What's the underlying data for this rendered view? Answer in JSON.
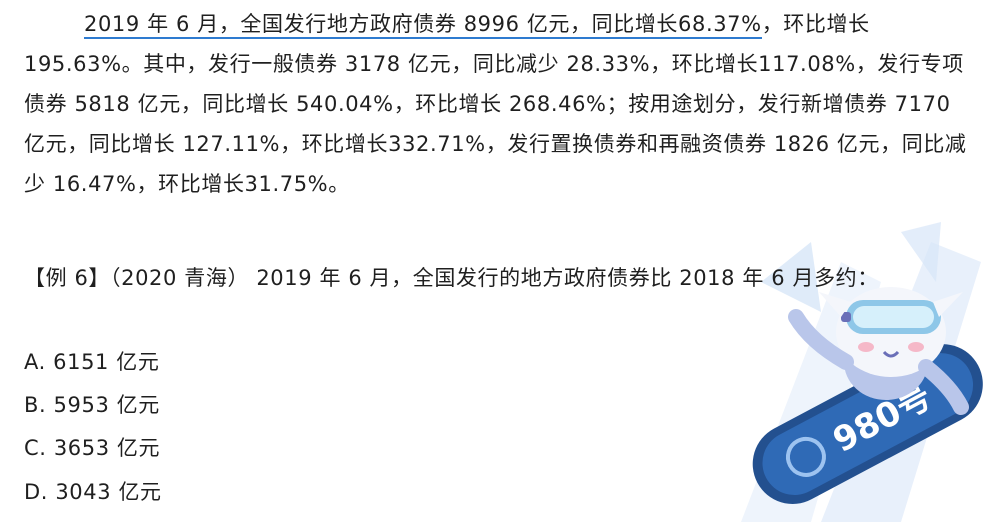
{
  "passage": {
    "first_sentence": "2019 年 6 月，全国发行地方政府债券 8996 亿元，同比增长68.37%",
    "rest": "，环比增长 195.63%。其中，发行一般债券 3178 亿元，同比减少 28.33%，环比增长117.08%，发行专项债券 5818 亿元，同比增长 540.04%，环比增长 268.46%；按用途划分，发行新增债券 7170 亿元，同比增长 127.11%，环比增长332.71%，发行置换债券和再融资债券 1826 亿元，同比减少 16.47%，环比增长31.75%。"
  },
  "question": {
    "text": "【例 6】（2020 青海） 2019 年 6 月，全国发行的地方政府债券比 2018 年 6 月多约："
  },
  "options": [
    "A. 6151 亿元",
    "B. 5953 亿元",
    "C. 3653 亿元",
    "D. 3043 亿元"
  ],
  "mascot": {
    "badge": "980号"
  },
  "colors": {
    "underline": "#2e7bd0",
    "text": "#1f1f1f",
    "deco_light": "#dfe9f8"
  }
}
